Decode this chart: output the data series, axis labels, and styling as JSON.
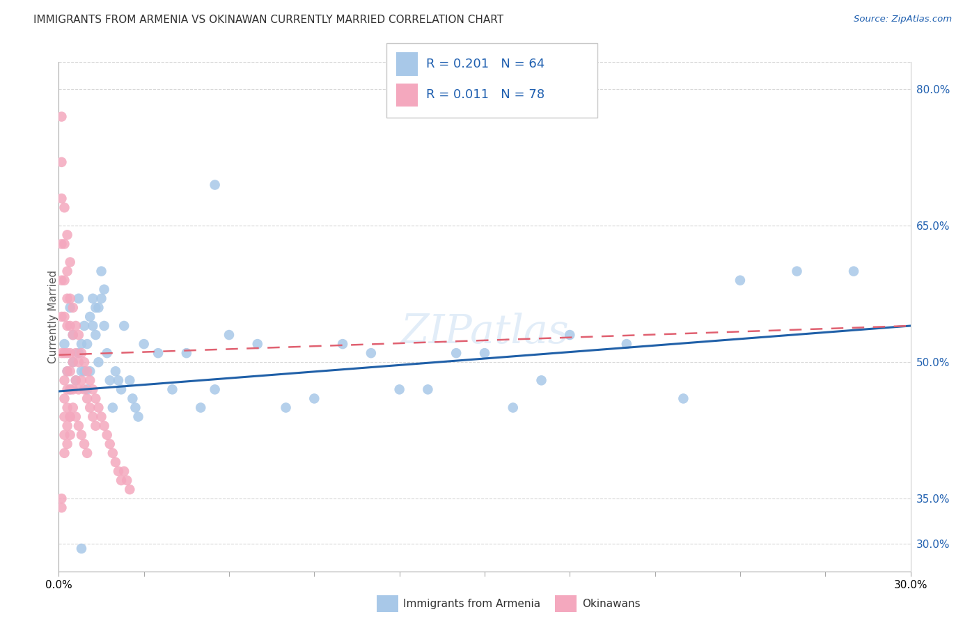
{
  "title": "IMMIGRANTS FROM ARMENIA VS OKINAWAN CURRENTLY MARRIED CORRELATION CHART",
  "source": "Source: ZipAtlas.com",
  "ylabel": "Currently Married",
  "xmin": 0.0,
  "xmax": 0.3,
  "ymin": 0.27,
  "ymax": 0.83,
  "armenia_r": 0.201,
  "armenia_n": 64,
  "okinawa_r": 0.011,
  "okinawa_n": 78,
  "armenia_color": "#a8c8e8",
  "okinawa_color": "#f4a8be",
  "armenia_line_color": "#2060a8",
  "okinawa_line_color": "#e06070",
  "blue_text_color": "#2060b0",
  "background": "#ffffff",
  "grid_color": "#d8d8d8",
  "title_color": "#333333",
  "yticks": [
    0.3,
    0.35,
    0.5,
    0.65,
    0.8
  ],
  "armenia_x": [
    0.002,
    0.003,
    0.004,
    0.004,
    0.005,
    0.005,
    0.006,
    0.007,
    0.007,
    0.008,
    0.008,
    0.009,
    0.009,
    0.01,
    0.01,
    0.011,
    0.011,
    0.012,
    0.012,
    0.013,
    0.013,
    0.014,
    0.014,
    0.015,
    0.016,
    0.016,
    0.017,
    0.018,
    0.019,
    0.02,
    0.021,
    0.022,
    0.023,
    0.025,
    0.026,
    0.027,
    0.028,
    0.03,
    0.035,
    0.04,
    0.045,
    0.05,
    0.055,
    0.06,
    0.07,
    0.08,
    0.09,
    0.1,
    0.11,
    0.12,
    0.13,
    0.14,
    0.15,
    0.16,
    0.17,
    0.18,
    0.2,
    0.22,
    0.24,
    0.26,
    0.28,
    0.055,
    0.008,
    0.015
  ],
  "armenia_y": [
    0.52,
    0.49,
    0.47,
    0.56,
    0.53,
    0.5,
    0.48,
    0.57,
    0.51,
    0.49,
    0.52,
    0.54,
    0.49,
    0.52,
    0.47,
    0.55,
    0.49,
    0.54,
    0.57,
    0.56,
    0.53,
    0.56,
    0.5,
    0.57,
    0.58,
    0.54,
    0.51,
    0.48,
    0.45,
    0.49,
    0.48,
    0.47,
    0.54,
    0.48,
    0.46,
    0.45,
    0.44,
    0.52,
    0.51,
    0.47,
    0.51,
    0.45,
    0.47,
    0.53,
    0.52,
    0.45,
    0.46,
    0.52,
    0.51,
    0.47,
    0.47,
    0.51,
    0.51,
    0.45,
    0.48,
    0.53,
    0.52,
    0.46,
    0.59,
    0.6,
    0.6,
    0.695,
    0.295,
    0.6
  ],
  "okinawa_x": [
    0.001,
    0.001,
    0.001,
    0.001,
    0.001,
    0.001,
    0.001,
    0.002,
    0.002,
    0.002,
    0.002,
    0.002,
    0.002,
    0.002,
    0.002,
    0.003,
    0.003,
    0.003,
    0.003,
    0.003,
    0.003,
    0.003,
    0.003,
    0.004,
    0.004,
    0.004,
    0.004,
    0.004,
    0.004,
    0.004,
    0.005,
    0.005,
    0.005,
    0.005,
    0.006,
    0.006,
    0.006,
    0.007,
    0.007,
    0.007,
    0.008,
    0.008,
    0.009,
    0.009,
    0.01,
    0.01,
    0.011,
    0.011,
    0.012,
    0.012,
    0.013,
    0.013,
    0.014,
    0.015,
    0.016,
    0.017,
    0.018,
    0.019,
    0.02,
    0.021,
    0.022,
    0.023,
    0.024,
    0.025,
    0.001,
    0.001,
    0.002,
    0.002,
    0.003,
    0.003,
    0.004,
    0.004,
    0.005,
    0.006,
    0.007,
    0.008,
    0.009,
    0.01
  ],
  "okinawa_y": [
    0.77,
    0.72,
    0.68,
    0.63,
    0.59,
    0.55,
    0.51,
    0.67,
    0.63,
    0.59,
    0.55,
    0.51,
    0.48,
    0.46,
    0.44,
    0.64,
    0.6,
    0.57,
    0.54,
    0.51,
    0.49,
    0.47,
    0.45,
    0.61,
    0.57,
    0.54,
    0.51,
    0.49,
    0.47,
    0.44,
    0.56,
    0.53,
    0.5,
    0.47,
    0.54,
    0.51,
    0.48,
    0.53,
    0.5,
    0.47,
    0.51,
    0.48,
    0.5,
    0.47,
    0.49,
    0.46,
    0.48,
    0.45,
    0.47,
    0.44,
    0.46,
    0.43,
    0.45,
    0.44,
    0.43,
    0.42,
    0.41,
    0.4,
    0.39,
    0.38,
    0.37,
    0.38,
    0.37,
    0.36,
    0.35,
    0.34,
    0.42,
    0.4,
    0.43,
    0.41,
    0.44,
    0.42,
    0.45,
    0.44,
    0.43,
    0.42,
    0.41,
    0.4
  ]
}
